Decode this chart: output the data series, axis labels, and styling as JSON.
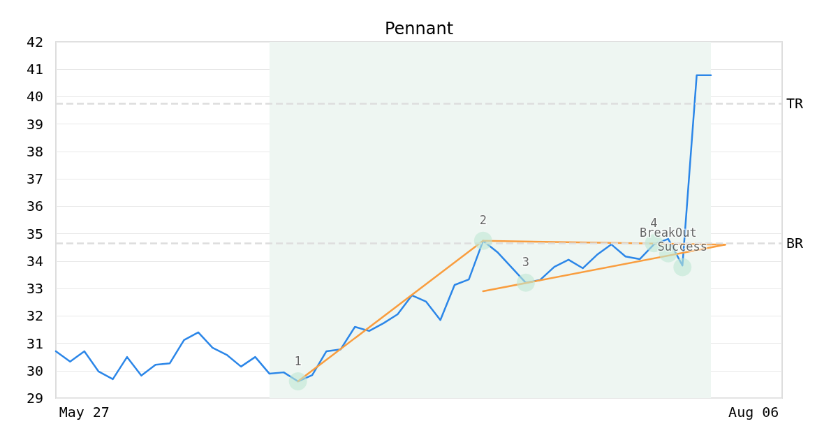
{
  "chart_data": {
    "type": "line",
    "title": "Pennant",
    "categories": [
      null,
      null,
      "May 27",
      null,
      null,
      null,
      null,
      null,
      null,
      null,
      null,
      null,
      null,
      null,
      null,
      null,
      null,
      null,
      null,
      null,
      null,
      null,
      null,
      null,
      null,
      null,
      null,
      null,
      null,
      null,
      null,
      null,
      null,
      null,
      null,
      null,
      null,
      null,
      null,
      null,
      null,
      null,
      null,
      null,
      null,
      null,
      null,
      null,
      null,
      "Aug 06",
      null,
      null
    ],
    "ylim": [
      29,
      42
    ],
    "yticks": [
      29,
      30,
      31,
      32,
      33,
      34,
      35,
      36,
      37,
      38,
      39,
      40,
      41,
      42
    ],
    "grid": "y",
    "marker": "none",
    "line_style": "solid",
    "series": [
      {
        "color": "#2b86e8",
        "values": [
          30.71,
          30.33,
          30.71,
          29.97,
          29.69,
          30.5,
          29.82,
          30.22,
          30.27,
          31.12,
          31.4,
          30.84,
          30.58,
          30.15,
          30.5,
          29.89,
          29.94,
          29.61,
          29.84,
          30.71,
          30.78,
          31.6,
          31.45,
          31.73,
          32.06,
          32.75,
          32.52,
          31.85,
          33.13,
          33.33,
          34.74,
          34.33,
          33.77,
          33.21,
          33.31,
          33.79,
          34.05,
          33.74,
          34.23,
          34.61,
          34.17,
          34.07,
          34.61,
          34.81,
          33.84,
          40.78,
          40.78,
          null,
          null,
          null,
          null,
          null
        ]
      },
      {
        "type": "line",
        "color": "#f99d3e",
        "values": [
          null,
          null,
          null,
          null,
          null,
          null,
          null,
          null,
          null,
          null,
          null,
          null,
          null,
          null,
          null,
          null,
          null,
          29.61,
          null,
          null,
          null,
          null,
          null,
          null,
          null,
          null,
          null,
          null,
          null,
          null,
          34.74,
          null,
          null,
          null,
          null,
          null,
          null,
          null,
          null,
          null,
          null,
          null,
          null,
          null,
          null,
          null,
          null,
          null,
          null,
          null,
          null,
          null
        ]
      },
      {
        "type": "line",
        "color": "#f99d3e",
        "values": [
          null,
          null,
          null,
          null,
          null,
          null,
          null,
          null,
          null,
          null,
          null,
          null,
          null,
          null,
          null,
          null,
          null,
          null,
          null,
          null,
          null,
          null,
          null,
          null,
          null,
          null,
          null,
          null,
          null,
          null,
          34.74,
          null,
          null,
          null,
          null,
          null,
          null,
          null,
          null,
          null,
          null,
          null,
          null,
          null,
          null,
          null,
          null,
          34.6,
          null,
          null,
          null,
          null
        ]
      },
      {
        "type": "line",
        "color": "#f99d3e",
        "values": [
          null,
          null,
          null,
          null,
          null,
          null,
          null,
          null,
          null,
          null,
          null,
          null,
          null,
          null,
          null,
          null,
          null,
          null,
          null,
          null,
          null,
          null,
          null,
          null,
          null,
          null,
          null,
          null,
          null,
          null,
          32.9,
          null,
          null,
          null,
          null,
          null,
          null,
          null,
          null,
          null,
          null,
          null,
          null,
          null,
          null,
          null,
          null,
          34.6,
          null,
          null,
          null,
          null
        ]
      },
      {
        "type": "scatter",
        "color": "#bfe8d4",
        "marker": "circle",
        "values": [
          null,
          null,
          null,
          null,
          null,
          null,
          null,
          null,
          null,
          null,
          null,
          null,
          null,
          null,
          null,
          null,
          null,
          29.61,
          null,
          null,
          null,
          null,
          null,
          null,
          null,
          null,
          null,
          null,
          null,
          null,
          34.74,
          null,
          null,
          33.21,
          null,
          null,
          null,
          null,
          null,
          null,
          null,
          null,
          34.65,
          34.28,
          33.78,
          null,
          null,
          null,
          null,
          null,
          null,
          null
        ]
      }
    ],
    "annotations": [
      {
        "text": "1",
        "y": 29.61
      },
      {
        "text": "2",
        "y": 34.74
      },
      {
        "text": "3",
        "y": 33.21
      },
      {
        "text": "4",
        "y": 34.65
      },
      {
        "text": "BreakOut",
        "y": 34.28
      },
      {
        "text": "Success",
        "y": 33.78
      }
    ],
    "ref_lines": [
      {
        "axis": "y",
        "value": 39.75,
        "label": "TR",
        "color": "#dddddd",
        "line_style": "dashed"
      },
      {
        "axis": "y",
        "value": 34.65,
        "label": "BR",
        "color": "#dddddd",
        "line_style": "dashed"
      }
    ]
  }
}
